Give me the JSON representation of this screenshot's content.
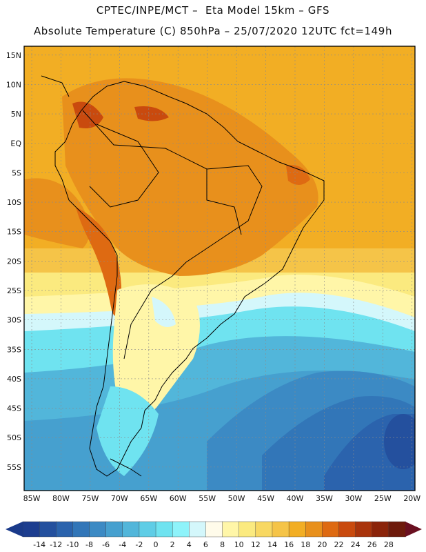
{
  "header": {
    "line1": "CPTEC/INPE/MCT –  Eta Model 15km – GFS",
    "line2": "Absolute Temperature (C) 850hPa – 25/07/2020 12UTC fct=149h"
  },
  "map": {
    "lat_labels": [
      "15N",
      "10N",
      "5N",
      "EQ",
      "5S",
      "10S",
      "15S",
      "20S",
      "25S",
      "30S",
      "35S",
      "40S",
      "45S",
      "50S",
      "55S"
    ],
    "lon_labels": [
      "85W",
      "80W",
      "75W",
      "70W",
      "65W",
      "60W",
      "55W",
      "50W",
      "45W",
      "40W",
      "35W",
      "30W",
      "25W",
      "20W"
    ],
    "lat_values": [
      15,
      10,
      5,
      0,
      -5,
      -10,
      -15,
      -20,
      -25,
      -30,
      -35,
      -40,
      -45,
      -50,
      -55
    ],
    "lon_values": [
      -85,
      -80,
      -75,
      -70,
      -65,
      -60,
      -55,
      -50,
      -45,
      -40,
      -35,
      -30,
      -25,
      -20
    ]
  },
  "colorbar": {
    "labels": [
      "-14",
      "-12",
      "-10",
      "-8",
      "-6",
      "-4",
      "-2",
      "0",
      "2",
      "4",
      "6",
      "8",
      "10",
      "12",
      "14",
      "16",
      "18",
      "20",
      "22",
      "24",
      "26",
      "28"
    ],
    "colors": [
      "#1c3d8f",
      "#24509e",
      "#2b63ad",
      "#3276b8",
      "#3c8ac4",
      "#46a0cf",
      "#52b6da",
      "#5fcde6",
      "#6fe3f0",
      "#8ef3fa",
      "#d4f7fb",
      "#fffbea",
      "#fff6a8",
      "#fbea7f",
      "#f8d862",
      "#f5c448",
      "#f2ae24",
      "#e8901c",
      "#de6a12",
      "#c94a0e",
      "#a9340c",
      "#8b240a",
      "#6e1b0c"
    ],
    "low_arrow_color": "#1a3a8a",
    "high_arrow_color": "#6a1020"
  }
}
